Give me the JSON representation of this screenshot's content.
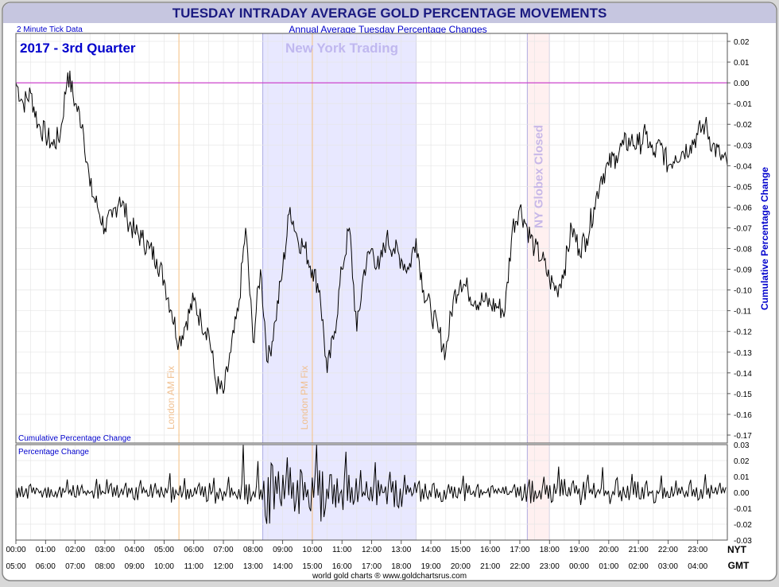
{
  "header": {
    "title": "TUESDAY INTRADAY AVERAGE GOLD PERCENTAGE MOVEMENTS"
  },
  "chart_data": {
    "type": "line",
    "title": "TUESDAY INTRADAY AVERAGE GOLD PERCENTAGE MOVEMENTS",
    "subtitle": "Annual Average Tuesday Percentage Changes",
    "tick_note": "2 Minute Tick Data",
    "period_label": "2017 - 3rd Quarter",
    "main_panel_label": "Cumulative Percentage Change",
    "lower_panel_label": "Percentage Change",
    "ylabel": "Cumulative Percentage Change",
    "footer": "world gold charts ® www.goldchartsrus.com",
    "x_axis_names": {
      "nyt": "NYT",
      "gmt": "GMT"
    },
    "x_nyt_labels": [
      "00:00",
      "01:00",
      "02:00",
      "03:00",
      "04:00",
      "05:00",
      "06:00",
      "07:00",
      "08:00",
      "09:00",
      "10:00",
      "11:00",
      "12:00",
      "13:00",
      "14:00",
      "15:00",
      "16:00",
      "17:00",
      "18:00",
      "19:00",
      "20:00",
      "21:00",
      "22:00",
      "23:00"
    ],
    "x_gmt_labels": [
      "05:00",
      "06:00",
      "07:00",
      "08:00",
      "09:00",
      "10:00",
      "11:00",
      "12:00",
      "13:00",
      "14:00",
      "15:00",
      "16:00",
      "17:00",
      "18:00",
      "19:00",
      "20:00",
      "21:00",
      "22:00",
      "23:00",
      "00:00",
      "01:00",
      "02:00",
      "03:00",
      "04:00"
    ],
    "main_yticks": [
      "0.02",
      "0.01",
      "0.00",
      "-0.01",
      "-0.02",
      "-0.03",
      "-0.04",
      "-0.05",
      "-0.06",
      "-0.07",
      "-0.08",
      "-0.09",
      "-0.10",
      "-0.11",
      "-0.12",
      "-0.13",
      "-0.14",
      "-0.15",
      "-0.16",
      "-0.17"
    ],
    "lower_yticks": [
      "0.03",
      "0.02",
      "0.01",
      "0.00",
      "-0.01",
      "-0.02",
      "-0.03"
    ],
    "ylim_main": [
      -0.17,
      0.02
    ],
    "ylim_lower": [
      -0.03,
      0.03
    ],
    "xlim_hours_nyt": [
      0,
      24
    ],
    "zero_line_color": "#cc44cc",
    "line_color": "#000000",
    "regions": [
      {
        "name": "New York Trading",
        "start": 8.33,
        "end": 13.5,
        "color": "#e8e8ff"
      },
      {
        "name": "NY Globex Closed",
        "start": 17.25,
        "end": 18.0,
        "color": "#fff0f0"
      }
    ],
    "markers": [
      {
        "name": "London AM Fix",
        "hour": 5.5,
        "color": "#f5c080"
      },
      {
        "name": "London PM Fix",
        "hour": 10.0,
        "color": "#f5c080"
      }
    ],
    "series": [
      {
        "name": "Cumulative Percentage Change",
        "x": [
          0.0,
          0.25,
          0.5,
          0.75,
          1.0,
          1.25,
          1.5,
          1.75,
          2.0,
          2.25,
          2.5,
          2.75,
          3.0,
          3.25,
          3.5,
          3.75,
          4.0,
          4.25,
          4.5,
          4.75,
          5.0,
          5.25,
          5.5,
          5.75,
          6.0,
          6.25,
          6.5,
          6.75,
          7.0,
          7.25,
          7.5,
          7.75,
          8.0,
          8.25,
          8.5,
          8.75,
          9.0,
          9.25,
          9.5,
          9.75,
          10.0,
          10.25,
          10.5,
          10.75,
          11.0,
          11.25,
          11.5,
          11.75,
          12.0,
          12.25,
          12.5,
          12.75,
          13.0,
          13.25,
          13.5,
          13.75,
          14.0,
          14.25,
          14.5,
          14.75,
          15.0,
          15.25,
          15.5,
          15.75,
          16.0,
          16.25,
          16.5,
          16.75,
          17.0,
          17.25,
          17.5,
          17.75,
          18.0,
          18.25,
          18.5,
          18.75,
          19.0,
          19.25,
          19.5,
          19.75,
          20.0,
          20.25,
          20.5,
          20.75,
          21.0,
          21.25,
          21.5,
          21.75,
          22.0,
          22.25,
          22.5,
          22.75,
          23.0,
          23.25,
          23.5,
          23.75,
          24.0
        ],
        "values": [
          0.0,
          -0.01,
          -0.005,
          -0.02,
          -0.025,
          -0.03,
          -0.025,
          0.005,
          -0.01,
          -0.02,
          -0.05,
          -0.06,
          -0.07,
          -0.065,
          -0.055,
          -0.065,
          -0.072,
          -0.075,
          -0.08,
          -0.085,
          -0.095,
          -0.11,
          -0.125,
          -0.115,
          -0.105,
          -0.115,
          -0.12,
          -0.145,
          -0.15,
          -0.13,
          -0.11,
          -0.07,
          -0.125,
          -0.09,
          -0.135,
          -0.115,
          -0.09,
          -0.06,
          -0.075,
          -0.08,
          -0.09,
          -0.1,
          -0.14,
          -0.12,
          -0.09,
          -0.07,
          -0.12,
          -0.09,
          -0.08,
          -0.09,
          -0.075,
          -0.08,
          -0.085,
          -0.09,
          -0.075,
          -0.1,
          -0.11,
          -0.12,
          -0.13,
          -0.105,
          -0.095,
          -0.1,
          -0.105,
          -0.105,
          -0.107,
          -0.108,
          -0.11,
          -0.07,
          -0.06,
          -0.07,
          -0.08,
          -0.085,
          -0.095,
          -0.1,
          -0.09,
          -0.07,
          -0.08,
          -0.075,
          -0.06,
          -0.045,
          -0.04,
          -0.035,
          -0.03,
          -0.028,
          -0.03,
          -0.025,
          -0.035,
          -0.03,
          -0.04,
          -0.035,
          -0.033,
          -0.03,
          -0.025,
          -0.02,
          -0.03,
          -0.035,
          -0.04
        ]
      },
      {
        "name": "Percentage Change",
        "values": [
          0.001,
          -0.003,
          0.004,
          -0.002,
          0.002,
          -0.004,
          0.003,
          0.005,
          -0.006,
          0.004,
          -0.003,
          0.006,
          -0.01,
          0.005,
          -0.004,
          0.003,
          -0.005,
          0.004,
          -0.006,
          0.005,
          -0.004,
          0.008,
          -0.006,
          0.005,
          -0.007,
          0.004,
          -0.006,
          0.009,
          -0.007,
          0.006,
          -0.008,
          0.02,
          -0.015,
          0.01,
          -0.02,
          0.015,
          -0.012,
          0.018,
          -0.015,
          0.012,
          -0.018,
          0.022,
          -0.016,
          0.01,
          -0.012,
          0.014,
          -0.01,
          0.008,
          -0.006,
          0.01,
          -0.008,
          0.012,
          -0.01,
          0.009,
          -0.007,
          0.006,
          -0.005,
          0.004,
          -0.006,
          0.005,
          -0.004,
          0.006,
          -0.005,
          0.003,
          -0.002,
          0.001,
          0.0,
          -0.002,
          0.004,
          -0.006,
          0.008,
          -0.005,
          0.006,
          -0.007,
          0.009,
          -0.006,
          0.005,
          -0.008,
          0.007,
          -0.005,
          0.008,
          -0.009,
          0.006,
          -0.005,
          0.007,
          -0.006,
          0.005,
          -0.007,
          0.006,
          -0.004,
          0.005,
          -0.006,
          0.004,
          -0.005,
          0.006,
          -0.004,
          0.003
        ]
      }
    ]
  }
}
